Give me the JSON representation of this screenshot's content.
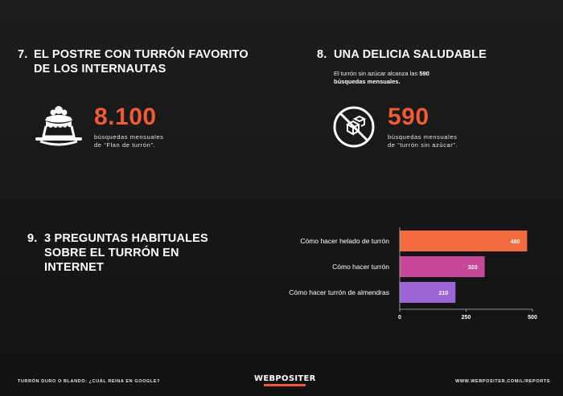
{
  "section7": {
    "number": "7.",
    "title_line1": "EL POSTRE CON TURRÓN FAVORITO",
    "title_line2": "DE LOS INTERNAUTAS",
    "stat": "8.100",
    "caption_line1": "búsquedas mensuales",
    "caption_line2": "de “Flan de turrón”.",
    "icon": "flan-dessert-icon"
  },
  "section8": {
    "number": "8.",
    "title": "UNA DELICIA SALUDABLE",
    "intro_prefix": "El turrón sin azúcar alcanza las",
    "intro_value": "590",
    "intro_bold_line2": "búsquedas mensuales.",
    "stat": "590",
    "caption_line1": "búsquedas mensuales",
    "caption_line2": "de “turrón sin azúcar”.",
    "icon": "no-sugar-icon"
  },
  "section9": {
    "number": "9.",
    "title_line1": "3 PREGUNTAS HABITUALES",
    "title_line2": "SOBRE EL TURRÓN EN",
    "title_line3": "INTERNET"
  },
  "chart_data": {
    "type": "bar",
    "orientation": "horizontal",
    "categories": [
      "Cómo hacer helado de turrón",
      "Cómo hacer turrón",
      "Cómo hacer turrón de almendras"
    ],
    "values": [
      480,
      320,
      210
    ],
    "bar_colors": [
      "#f26a3d",
      "#c9489a",
      "#9b65d6"
    ],
    "xlim": [
      0,
      500
    ],
    "xticks": [
      "0",
      "250",
      "500"
    ],
    "grid": false,
    "legend": "none"
  },
  "footer": {
    "left": "TURRÓN DURO O BLANDO: ¿CUÁL REINA EN GOOGLE?",
    "logo": "WEBPOSITER",
    "right": "WWW.WEBPOSITER.COM/L/REPORTS"
  },
  "colors": {
    "accent": "#f05a35",
    "background": "#161616"
  }
}
